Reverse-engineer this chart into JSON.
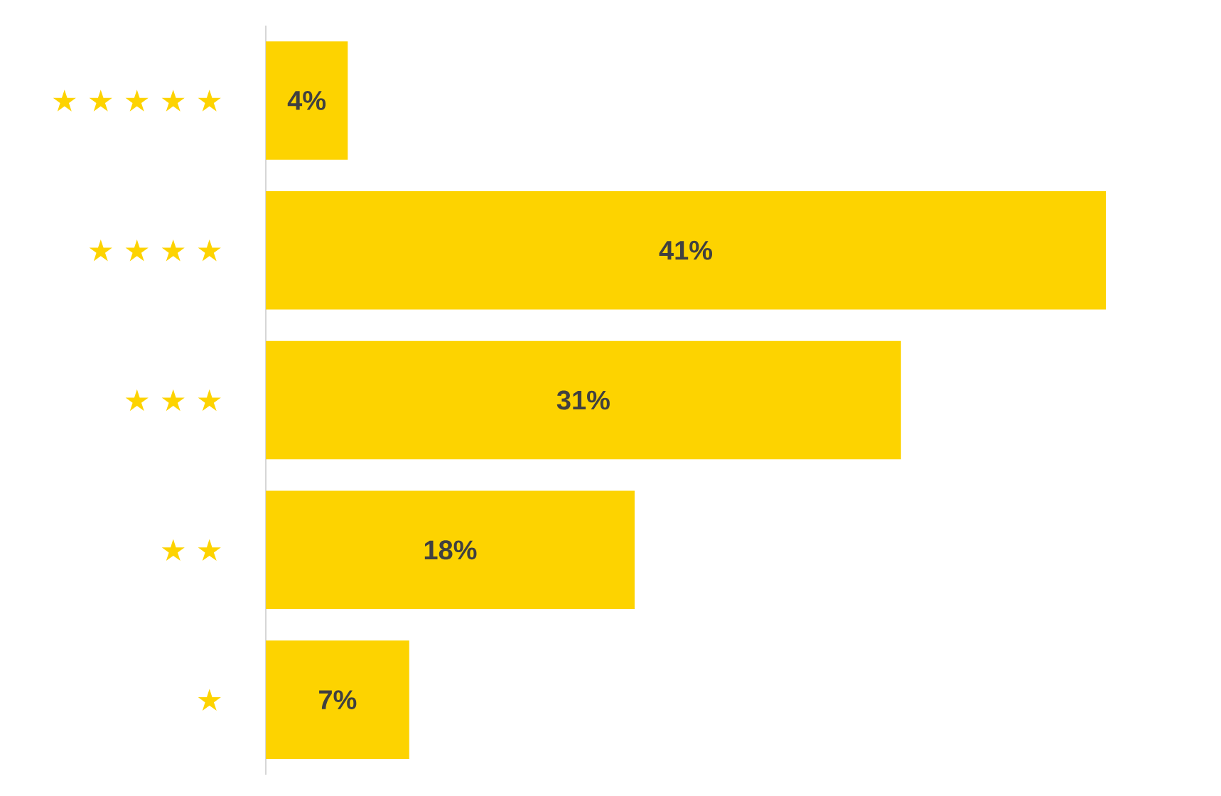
{
  "chart_data": {
    "type": "bar",
    "orientation": "horizontal",
    "categories": [
      "★ ★ ★ ★ ★",
      "★ ★ ★ ★",
      "★ ★ ★",
      "★ ★",
      "★"
    ],
    "values": [
      4,
      41,
      31,
      18,
      7
    ],
    "value_labels": [
      "4%",
      "41%",
      "31%",
      "18%",
      "7%"
    ],
    "color": "#fdd300"
  }
}
